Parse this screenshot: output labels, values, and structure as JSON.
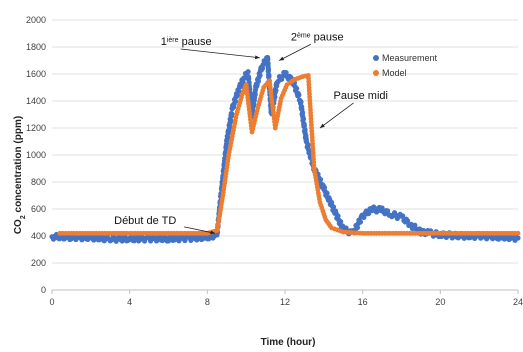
{
  "chart_data": {
    "type": "scatter",
    "title": "",
    "xlabel": "Time (hour)",
    "ylabel_main": "CO",
    "ylabel_sub": "2",
    "ylabel_rest": " concentration (ppm)",
    "xlim": [
      0,
      24
    ],
    "ylim": [
      0,
      2000
    ],
    "x_ticks": [
      "0",
      "4",
      "8",
      "12",
      "16",
      "20",
      "24"
    ],
    "y_ticks": [
      "0",
      "200",
      "400",
      "600",
      "800",
      "1000",
      "1200",
      "1400",
      "1600",
      "1800",
      "2000"
    ],
    "grid": "horizontal",
    "legend_position": "top-right",
    "series": [
      {
        "name": "Measurement",
        "color": "#4472C4",
        "points": [
          [
            0,
            395
          ],
          [
            1,
            392
          ],
          [
            2,
            388
          ],
          [
            3,
            380
          ],
          [
            4,
            378
          ],
          [
            5,
            382
          ],
          [
            6,
            380
          ],
          [
            7,
            385
          ],
          [
            8,
            390
          ],
          [
            8.5,
            410
          ],
          [
            8.7,
            700
          ],
          [
            9,
            1100
          ],
          [
            9.3,
            1350
          ],
          [
            9.6,
            1480
          ],
          [
            9.9,
            1580
          ],
          [
            10.1,
            1600
          ],
          [
            10.3,
            1300
          ],
          [
            10.5,
            1500
          ],
          [
            10.8,
            1650
          ],
          [
            11.1,
            1720
          ],
          [
            11.3,
            1300
          ],
          [
            11.6,
            1550
          ],
          [
            12,
            1600
          ],
          [
            12.4,
            1550
          ],
          [
            12.8,
            1400
          ],
          [
            13.1,
            1100
          ],
          [
            13.5,
            900
          ],
          [
            14,
            750
          ],
          [
            14.5,
            600
          ],
          [
            15,
            450
          ],
          [
            15.5,
            420
          ],
          [
            16,
            550
          ],
          [
            16.5,
            600
          ],
          [
            17,
            590
          ],
          [
            17.5,
            560
          ],
          [
            18,
            540
          ],
          [
            18.5,
            480
          ],
          [
            19,
            430
          ],
          [
            19.5,
            420
          ],
          [
            20,
            410
          ],
          [
            21,
            400
          ],
          [
            22,
            400
          ],
          [
            23,
            395
          ],
          [
            24,
            385
          ]
        ]
      },
      {
        "name": "Model",
        "color": "#ED7D31",
        "points": [
          [
            0.4,
            420
          ],
          [
            1,
            420
          ],
          [
            2,
            420
          ],
          [
            3,
            420
          ],
          [
            4,
            420
          ],
          [
            5,
            420
          ],
          [
            6,
            420
          ],
          [
            7,
            420
          ],
          [
            8,
            420
          ],
          [
            8.5,
            440
          ],
          [
            8.8,
            700
          ],
          [
            9.1,
            1000
          ],
          [
            9.5,
            1300
          ],
          [
            9.8,
            1450
          ],
          [
            10,
            1520
          ],
          [
            10.3,
            1170
          ],
          [
            10.6,
            1350
          ],
          [
            10.9,
            1500
          ],
          [
            11.2,
            1550
          ],
          [
            11.5,
            1200
          ],
          [
            11.8,
            1420
          ],
          [
            12.1,
            1520
          ],
          [
            12.5,
            1560
          ],
          [
            12.9,
            1580
          ],
          [
            13.2,
            1590
          ],
          [
            13.5,
            900
          ],
          [
            13.8,
            650
          ],
          [
            14.1,
            520
          ],
          [
            14.4,
            460
          ],
          [
            15,
            430
          ],
          [
            16,
            420
          ],
          [
            17,
            420
          ],
          [
            18,
            420
          ],
          [
            19,
            420
          ],
          [
            20,
            420
          ],
          [
            21,
            420
          ],
          [
            22,
            420
          ],
          [
            23,
            420
          ],
          [
            24,
            420
          ]
        ]
      }
    ],
    "annotations": [
      {
        "id": "premiere-pause",
        "pre": "1",
        "sup": "ière",
        "post": " pause",
        "at": [
          10.7,
          1720
        ],
        "text_at": [
          5.6,
          1815
        ]
      },
      {
        "id": "deuxieme-pause",
        "pre": "2",
        "sup": "ème",
        "post": " pause",
        "at": [
          11.7,
          1700
        ],
        "text_at": [
          12.3,
          1850
        ]
      },
      {
        "id": "pause-midi",
        "pre": "Pause midi",
        "sup": "",
        "post": "",
        "at": [
          13.8,
          1200
        ],
        "text_at": [
          14.5,
          1415
        ]
      },
      {
        "id": "debut-de-td",
        "pre": "Début de TD",
        "sup": "",
        "post": "",
        "at": [
          8.4,
          420
        ],
        "text_at": [
          3.2,
          490
        ]
      }
    ]
  }
}
